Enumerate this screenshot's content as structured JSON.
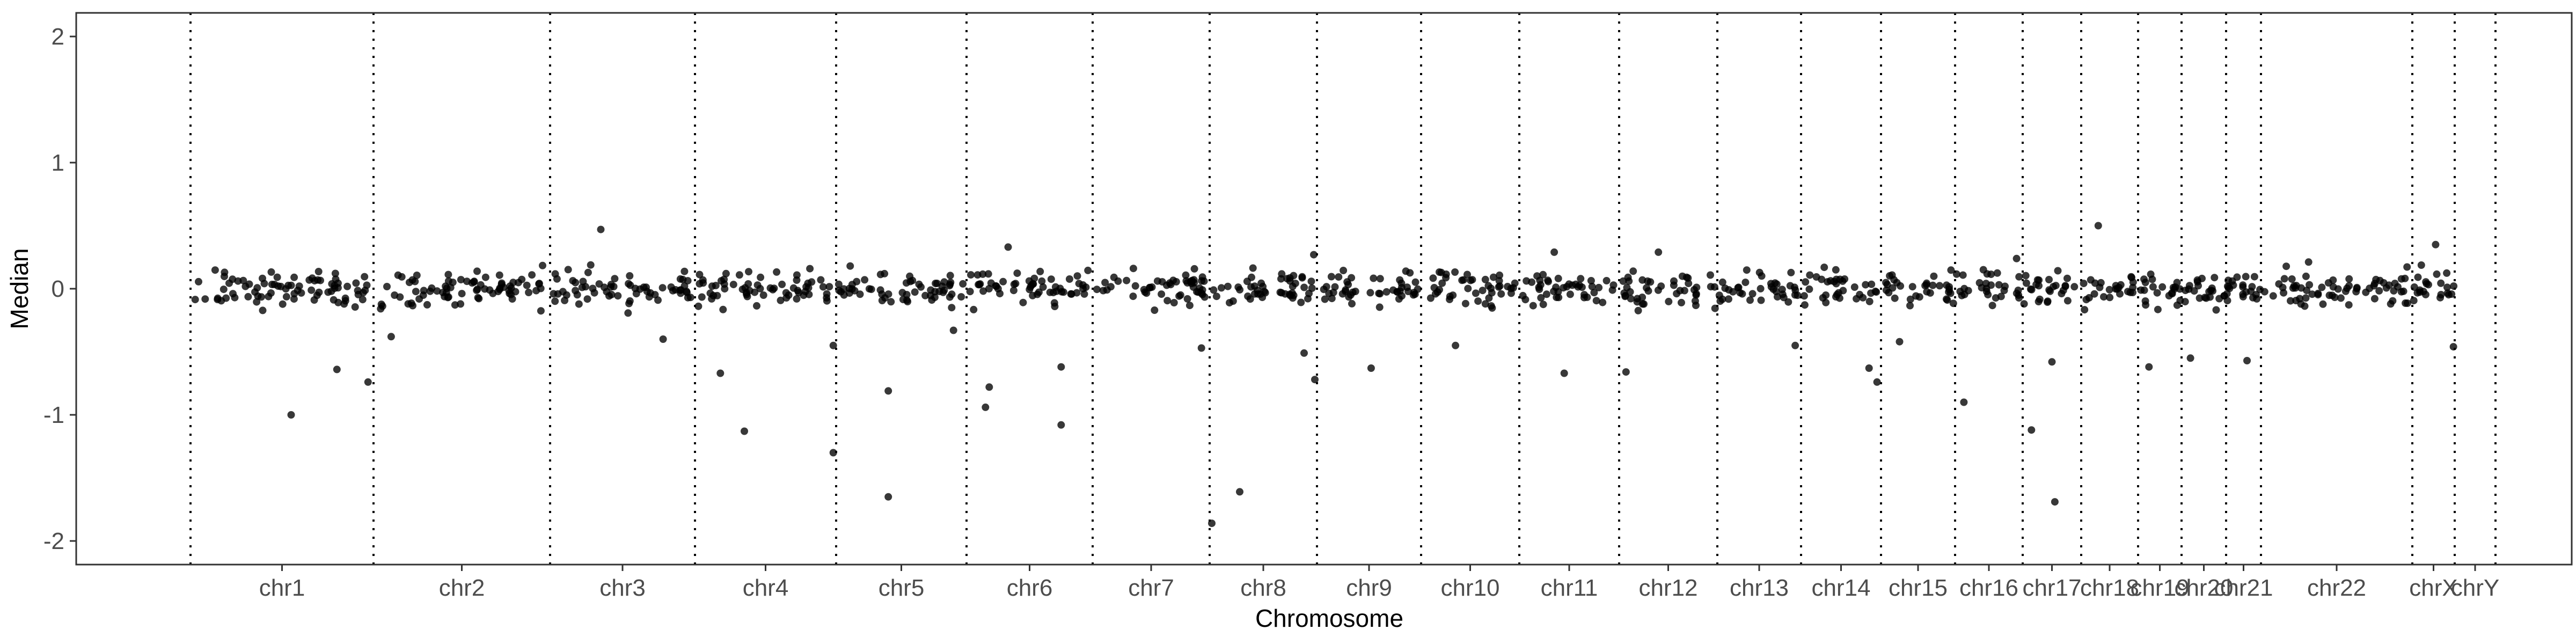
{
  "chart_data": {
    "type": "scatter",
    "title": "",
    "xlabel": "Chromosome",
    "ylabel": "Median",
    "ylim": [
      -2.2,
      2.2
    ],
    "y_ticks": [
      2,
      1,
      0,
      -1,
      -2
    ],
    "grid": false,
    "legend": "none",
    "point_color": "#000000",
    "boundary_color": "#000000",
    "boundary_style": "dotted",
    "chromosomes": [
      {
        "name": "chr1",
        "start": 0,
        "end": 1
      },
      {
        "name": "chr2",
        "start": 1,
        "end": 2
      },
      {
        "name": "chr3",
        "start": 2,
        "end": 3
      },
      {
        "name": "chr4",
        "start": 3,
        "end": 4
      },
      {
        "name": "chr5",
        "start": 4,
        "end": 5
      },
      {
        "name": "chr6",
        "start": 5,
        "end": 6
      },
      {
        "name": "chr7",
        "start": 6,
        "end": 7
      },
      {
        "name": "chr8",
        "start": 7,
        "end": 8
      },
      {
        "name": "chr9",
        "start": 8,
        "end": 9
      },
      {
        "name": "chr10",
        "start": 9,
        "end": 10
      },
      {
        "name": "chr11",
        "start": 10,
        "end": 11
      },
      {
        "name": "chr12",
        "start": 11,
        "end": 12
      },
      {
        "name": "chr13",
        "start": 12,
        "end": 13
      },
      {
        "name": "chr14",
        "start": 13,
        "end": 14
      },
      {
        "name": "chr15",
        "start": 14,
        "end": 15
      },
      {
        "name": "chr16",
        "start": 15,
        "end": 16
      },
      {
        "name": "chr17",
        "start": 16,
        "end": 17
      },
      {
        "name": "chr18",
        "start": 17,
        "end": 18
      },
      {
        "name": "chr19",
        "start": 18,
        "end": 19
      },
      {
        "name": "chr20",
        "start": 19,
        "end": 20
      },
      {
        "name": "chr21",
        "start": 20,
        "end": 21
      },
      {
        "name": "chr22",
        "start": 21,
        "end": 22
      },
      {
        "name": "chrX",
        "start": 22,
        "end": 23
      },
      {
        "name": "chrY",
        "start": 23,
        "end": 24
      }
    ],
    "outliers": [
      {
        "chrom": "chr1",
        "frac": 0.55,
        "y": -1.0
      },
      {
        "chrom": "chr1",
        "frac": 0.8,
        "y": -0.64
      },
      {
        "chrom": "chr1",
        "frac": 0.97,
        "y": -0.74
      },
      {
        "chrom": "chr2",
        "frac": 0.1,
        "y": -0.38
      },
      {
        "chrom": "chr3",
        "frac": 0.35,
        "y": 0.47
      },
      {
        "chrom": "chr3",
        "frac": 0.78,
        "y": -0.4
      },
      {
        "chrom": "chr4",
        "frac": 0.18,
        "y": -0.67
      },
      {
        "chrom": "chr4",
        "frac": 0.35,
        "y": -1.13
      },
      {
        "chrom": "chr4",
        "frac": 0.98,
        "y": -1.3
      },
      {
        "chrom": "chr4",
        "frac": 0.98,
        "y": -0.45
      },
      {
        "chrom": "chr5",
        "frac": 0.4,
        "y": -1.65
      },
      {
        "chrom": "chr5",
        "frac": 0.4,
        "y": -0.81
      },
      {
        "chrom": "chr5",
        "frac": 0.9,
        "y": -0.33
      },
      {
        "chrom": "chr6",
        "frac": 0.15,
        "y": -0.94
      },
      {
        "chrom": "chr6",
        "frac": 0.18,
        "y": -0.78
      },
      {
        "chrom": "chr6",
        "frac": 0.33,
        "y": 0.33
      },
      {
        "chrom": "chr6",
        "frac": 0.75,
        "y": -0.62
      },
      {
        "chrom": "chr6",
        "frac": 0.75,
        "y": -1.08
      },
      {
        "chrom": "chr7",
        "frac": 0.93,
        "y": -0.47
      },
      {
        "chrom": "chr8",
        "frac": 0.02,
        "y": -1.86
      },
      {
        "chrom": "chr8",
        "frac": 0.28,
        "y": -1.61
      },
      {
        "chrom": "chr8",
        "frac": 0.88,
        "y": -0.51
      },
      {
        "chrom": "chr8",
        "frac": 0.98,
        "y": -0.72
      },
      {
        "chrom": "chr8",
        "frac": 0.97,
        "y": 0.27
      },
      {
        "chrom": "chr9",
        "frac": 0.52,
        "y": -0.63
      },
      {
        "chrom": "chr10",
        "frac": 0.35,
        "y": -0.45
      },
      {
        "chrom": "chr11",
        "frac": 0.45,
        "y": -0.67
      },
      {
        "chrom": "chr11",
        "frac": 0.35,
        "y": 0.29
      },
      {
        "chrom": "chr12",
        "frac": 0.07,
        "y": -0.66
      },
      {
        "chrom": "chr12",
        "frac": 0.4,
        "y": 0.29
      },
      {
        "chrom": "chr13",
        "frac": 0.93,
        "y": -0.45
      },
      {
        "chrom": "chr14",
        "frac": 0.85,
        "y": -0.63
      },
      {
        "chrom": "chr14",
        "frac": 0.95,
        "y": -0.74
      },
      {
        "chrom": "chr15",
        "frac": 0.25,
        "y": -0.42
      },
      {
        "chrom": "chr16",
        "frac": 0.13,
        "y": -0.9
      },
      {
        "chrom": "chr17",
        "frac": 0.15,
        "y": -1.12
      },
      {
        "chrom": "chr17",
        "frac": 0.55,
        "y": -1.69
      },
      {
        "chrom": "chr17",
        "frac": 0.5,
        "y": -0.58
      },
      {
        "chrom": "chr18",
        "frac": 0.3,
        "y": 0.5
      },
      {
        "chrom": "chr19",
        "frac": 0.25,
        "y": -0.62
      },
      {
        "chrom": "chr20",
        "frac": 0.2,
        "y": -0.55
      },
      {
        "chrom": "chr21",
        "frac": 0.6,
        "y": -0.57
      },
      {
        "chrom": "chrX",
        "frac": 0.55,
        "y": 0.35
      },
      {
        "chrom": "chrX",
        "frac": 0.97,
        "y": -0.46
      }
    ]
  }
}
